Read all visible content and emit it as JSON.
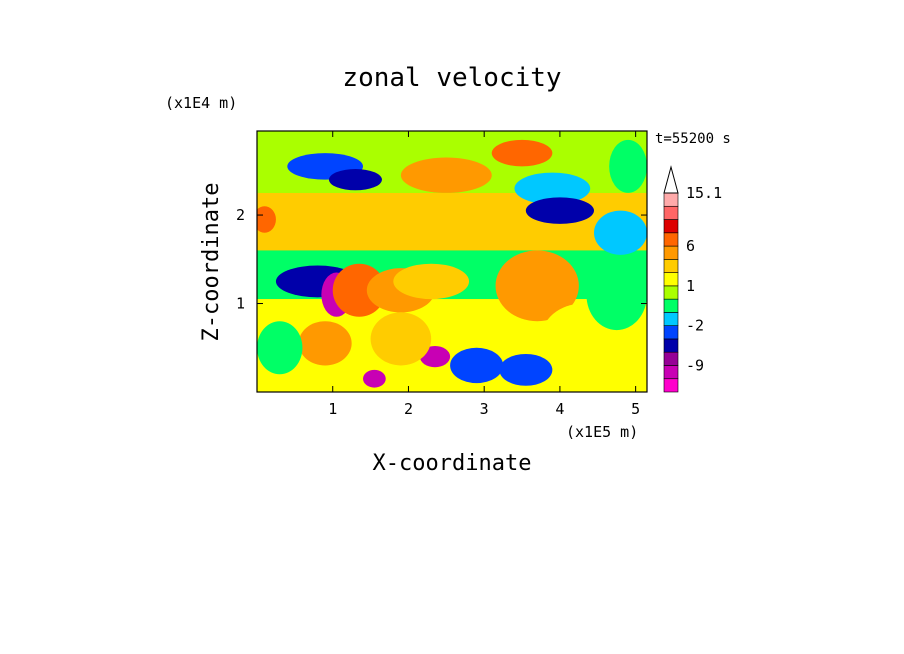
{
  "chart_data": {
    "type": "heatmap",
    "title": "zonal velocity",
    "xlabel": "X-coordinate",
    "ylabel": "Z-coordinate",
    "x_unit": "(x1E5 m)",
    "y_unit": "(x1E4 m)",
    "time_label": "t=55200 s",
    "xlim": [
      0,
      5.15
    ],
    "ylim": [
      0,
      2.95
    ],
    "x_ticks": [
      1,
      2,
      3,
      4,
      5
    ],
    "y_ticks": [
      1,
      2
    ],
    "colorbar": {
      "levels": [
        -15,
        -12,
        -9,
        -6,
        -4,
        -2,
        -1,
        0,
        1,
        2,
        4,
        6,
        9,
        12,
        15.1
      ],
      "tick_labels": [
        {
          "label": "15.1",
          "value": 15.1
        },
        {
          "label": "6",
          "value": 6
        },
        {
          "label": "1",
          "value": 1
        },
        {
          "label": "-2",
          "value": -2
        },
        {
          "label": "-9",
          "value": -9
        }
      ],
      "colors": [
        "#ff00cc",
        "#c800b4",
        "#960096",
        "#0000aa",
        "#0044ff",
        "#00c8ff",
        "#00ff66",
        "#aaff00",
        "#ffff00",
        "#ffcc00",
        "#ff9900",
        "#ff6600",
        "#dd0000",
        "#ff6666",
        "#ffaaaa"
      ],
      "extend_top": true
    },
    "features": [
      {
        "kind": "band",
        "x0": 0.0,
        "x1": 5.15,
        "z0": 1.6,
        "z1": 2.25,
        "value": 3
      },
      {
        "kind": "band",
        "x0": 0.0,
        "x1": 5.15,
        "z0": 2.25,
        "z1": 2.95,
        "value": 0.5
      },
      {
        "kind": "band",
        "x0": 0.0,
        "x1": 5.15,
        "z0": 1.05,
        "z1": 1.6,
        "value": -0.5
      },
      {
        "kind": "band",
        "x0": 0.0,
        "x1": 5.15,
        "z0": 0.0,
        "z1": 1.05,
        "value": 1.5
      },
      {
        "kind": "blob",
        "x": 0.8,
        "z": 1.25,
        "rx": 0.55,
        "rz": 0.18,
        "value": -6
      },
      {
        "kind": "blob",
        "x": 1.05,
        "z": 1.1,
        "rx": 0.2,
        "rz": 0.25,
        "value": -12
      },
      {
        "kind": "blob",
        "x": 1.35,
        "z": 1.15,
        "rx": 0.35,
        "rz": 0.3,
        "value": 6
      },
      {
        "kind": "blob",
        "x": 1.9,
        "z": 1.15,
        "rx": 0.45,
        "rz": 0.25,
        "value": 4
      },
      {
        "kind": "blob",
        "x": 2.3,
        "z": 1.25,
        "rx": 0.5,
        "rz": 0.2,
        "value": 2
      },
      {
        "kind": "blob",
        "x": 0.9,
        "z": 2.55,
        "rx": 0.5,
        "rz": 0.15,
        "value": -4
      },
      {
        "kind": "blob",
        "x": 1.3,
        "z": 2.4,
        "rx": 0.35,
        "rz": 0.12,
        "value": -6
      },
      {
        "kind": "blob",
        "x": 2.5,
        "z": 2.45,
        "rx": 0.6,
        "rz": 0.2,
        "value": 4
      },
      {
        "kind": "blob",
        "x": 3.5,
        "z": 2.7,
        "rx": 0.4,
        "rz": 0.15,
        "value": 6
      },
      {
        "kind": "blob",
        "x": 3.9,
        "z": 2.3,
        "rx": 0.5,
        "rz": 0.18,
        "value": -2
      },
      {
        "kind": "blob",
        "x": 4.0,
        "z": 2.05,
        "rx": 0.45,
        "rz": 0.15,
        "value": -6
      },
      {
        "kind": "blob",
        "x": 4.8,
        "z": 1.8,
        "rx": 0.35,
        "rz": 0.25,
        "value": -2
      },
      {
        "kind": "blob",
        "x": 3.7,
        "z": 1.2,
        "rx": 0.55,
        "rz": 0.4,
        "value": 4
      },
      {
        "kind": "blob",
        "x": 4.3,
        "z": 0.6,
        "rx": 0.55,
        "rz": 0.4,
        "value": 1.5
      },
      {
        "kind": "blob",
        "x": 4.75,
        "z": 1.1,
        "rx": 0.4,
        "rz": 0.4,
        "value": -0.5
      },
      {
        "kind": "blob",
        "x": 3.55,
        "z": 0.25,
        "rx": 0.35,
        "rz": 0.18,
        "value": -4
      },
      {
        "kind": "blob",
        "x": 2.35,
        "z": 0.4,
        "rx": 0.2,
        "rz": 0.12,
        "value": -12
      },
      {
        "kind": "blob",
        "x": 2.9,
        "z": 0.3,
        "rx": 0.35,
        "rz": 0.2,
        "value": -4
      },
      {
        "kind": "blob",
        "x": 1.55,
        "z": 0.15,
        "rx": 0.15,
        "rz": 0.1,
        "value": -12
      },
      {
        "kind": "blob",
        "x": 0.9,
        "z": 0.55,
        "rx": 0.35,
        "rz": 0.25,
        "value": 4
      },
      {
        "kind": "blob",
        "x": 0.3,
        "z": 0.5,
        "rx": 0.3,
        "rz": 0.3,
        "value": -1
      },
      {
        "kind": "blob",
        "x": 1.9,
        "z": 0.6,
        "rx": 0.4,
        "rz": 0.3,
        "value": 2
      },
      {
        "kind": "blob",
        "x": 0.1,
        "z": 1.95,
        "rx": 0.15,
        "rz": 0.15,
        "value": 6
      },
      {
        "kind": "blob",
        "x": 4.9,
        "z": 2.55,
        "rx": 0.25,
        "rz": 0.3,
        "value": -1
      }
    ]
  }
}
